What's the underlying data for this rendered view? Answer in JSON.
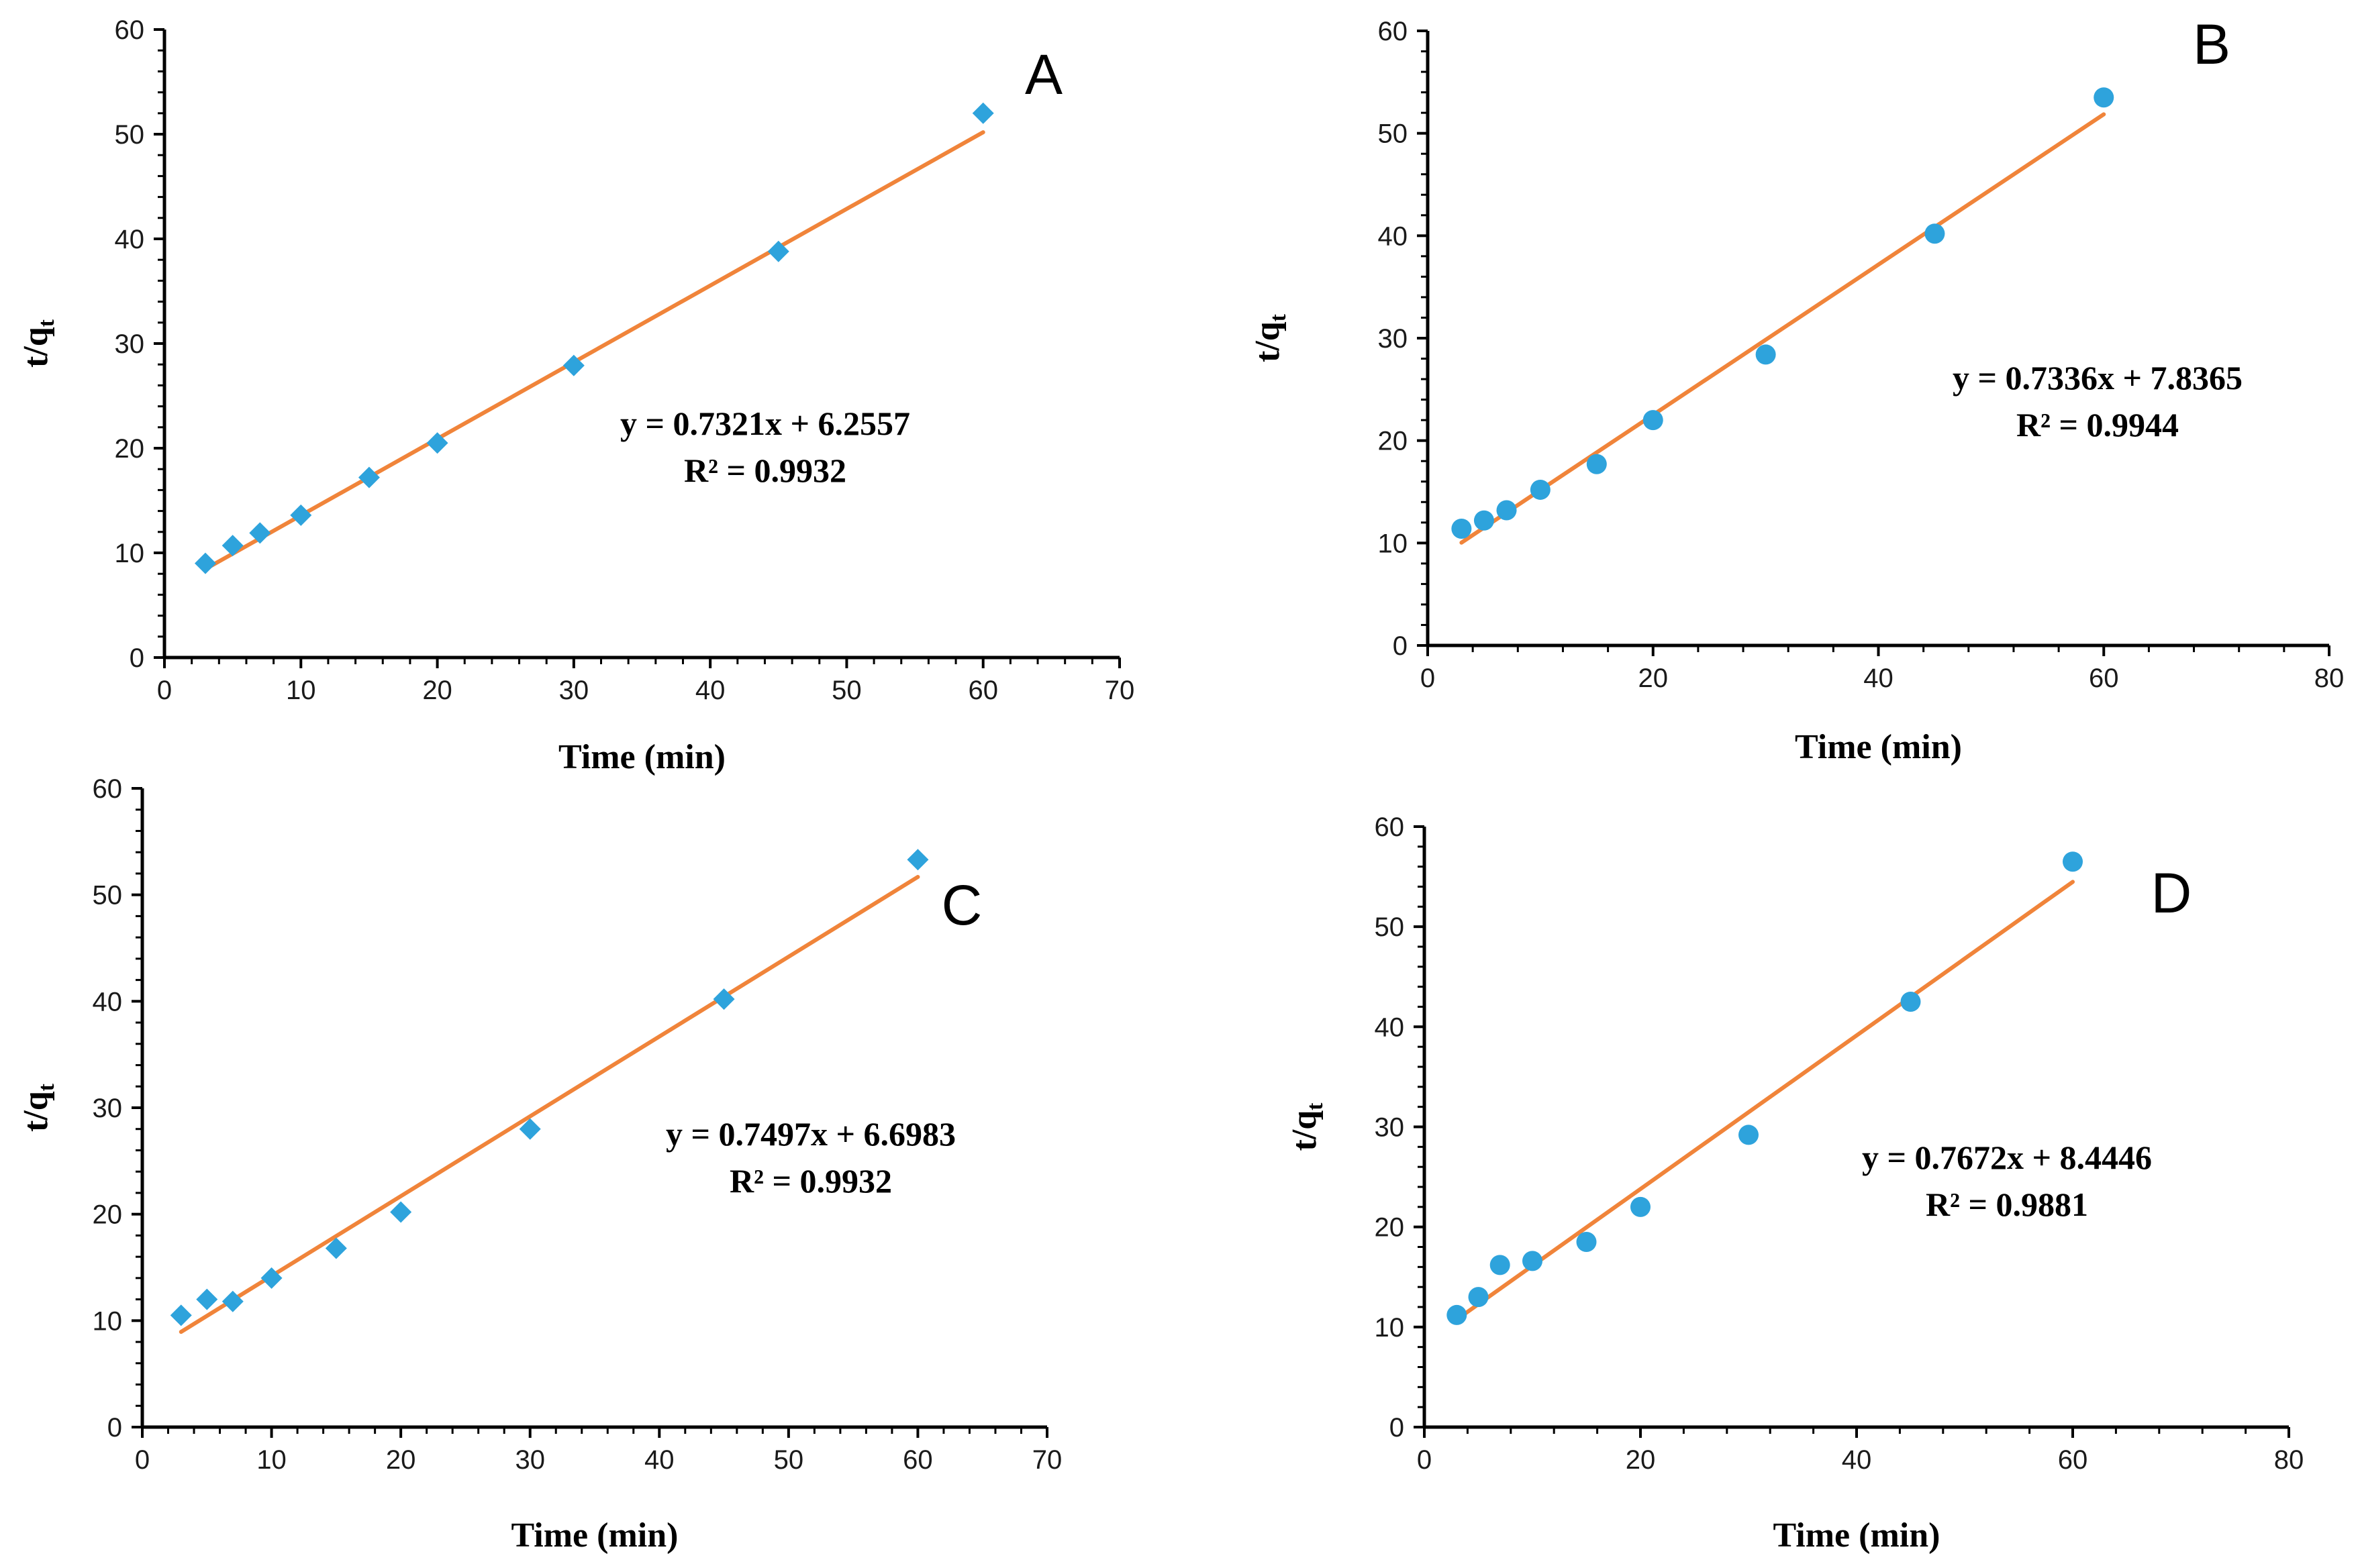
{
  "chart_data": [
    {
      "panel": "A",
      "type": "scatter",
      "marker": "diamond",
      "xlabel": "Time (min)",
      "ylabel": "t/q",
      "ylabel_sub": "t",
      "xlim": [
        0,
        70
      ],
      "ylim": [
        0,
        60
      ],
      "xticks": [
        0,
        10,
        20,
        30,
        40,
        50,
        60,
        70
      ],
      "yticks": [
        0,
        10,
        20,
        30,
        40,
        50,
        60
      ],
      "x": [
        3,
        5,
        7,
        10,
        15,
        20,
        30,
        45,
        60
      ],
      "y": [
        9.0,
        10.7,
        11.9,
        13.6,
        17.2,
        20.5,
        27.9,
        38.8,
        52.0
      ],
      "fit": {
        "slope": 0.7321,
        "intercept": 6.2557,
        "x_range": [
          3,
          60
        ]
      },
      "equation": "y = 0.7321x + 6.2557",
      "r2": "R² = 0.9932",
      "grid": false
    },
    {
      "panel": "B",
      "type": "scatter",
      "marker": "circle",
      "xlabel": "Time (min)",
      "ylabel": "t/q",
      "ylabel_sub": "t",
      "xlim": [
        0,
        80
      ],
      "ylim": [
        0,
        60
      ],
      "xticks": [
        0,
        20,
        40,
        60,
        80
      ],
      "yticks": [
        0,
        10,
        20,
        30,
        40,
        50,
        60
      ],
      "x": [
        3,
        5,
        7,
        10,
        15,
        20,
        30,
        45,
        60
      ],
      "y": [
        11.4,
        12.2,
        13.2,
        15.2,
        17.7,
        22.0,
        28.4,
        40.2,
        53.5
      ],
      "fit": {
        "slope": 0.7336,
        "intercept": 7.8365,
        "x_range": [
          3,
          60
        ]
      },
      "equation": "y = 0.7336x + 7.8365",
      "r2": "R² = 0.9944",
      "grid": false
    },
    {
      "panel": "C",
      "type": "scatter",
      "marker": "diamond",
      "xlabel": "Time (min)",
      "ylabel": "t/q",
      "ylabel_sub": "t",
      "xlim": [
        0,
        70
      ],
      "ylim": [
        0,
        60
      ],
      "xticks": [
        0,
        10,
        20,
        30,
        40,
        50,
        60,
        70
      ],
      "yticks": [
        0,
        10,
        20,
        30,
        40,
        50,
        60
      ],
      "x": [
        3,
        5,
        7,
        10,
        15,
        20,
        30,
        45,
        60
      ],
      "y": [
        10.5,
        12.0,
        11.8,
        14.0,
        16.8,
        20.2,
        28.0,
        40.2,
        53.3
      ],
      "fit": {
        "slope": 0.7497,
        "intercept": 6.6983,
        "x_range": [
          3,
          60
        ]
      },
      "equation": "y = 0.7497x + 6.6983",
      "r2": "R² = 0.9932",
      "grid": false
    },
    {
      "panel": "D",
      "type": "scatter",
      "marker": "circle",
      "xlabel": "Time (min)",
      "ylabel": "t/q",
      "ylabel_sub": "t",
      "xlim": [
        0,
        80
      ],
      "ylim": [
        0,
        60
      ],
      "xticks": [
        0,
        20,
        40,
        60,
        80
      ],
      "yticks": [
        0,
        10,
        20,
        30,
        40,
        50,
        60
      ],
      "x": [
        3,
        5,
        7,
        10,
        15,
        20,
        30,
        45,
        60
      ],
      "y": [
        11.2,
        13.0,
        16.2,
        16.6,
        18.5,
        22.0,
        29.2,
        42.5,
        56.5
      ],
      "fit": {
        "slope": 0.7672,
        "intercept": 8.4446,
        "x_range": [
          3,
          60
        ]
      },
      "equation": "y = 0.7672x + 8.4446",
      "r2": "R² = 0.9881",
      "grid": false
    }
  ],
  "colors": {
    "marker": "#2ea3dc",
    "fit_line": "#f0843a",
    "axis": "#000000"
  }
}
